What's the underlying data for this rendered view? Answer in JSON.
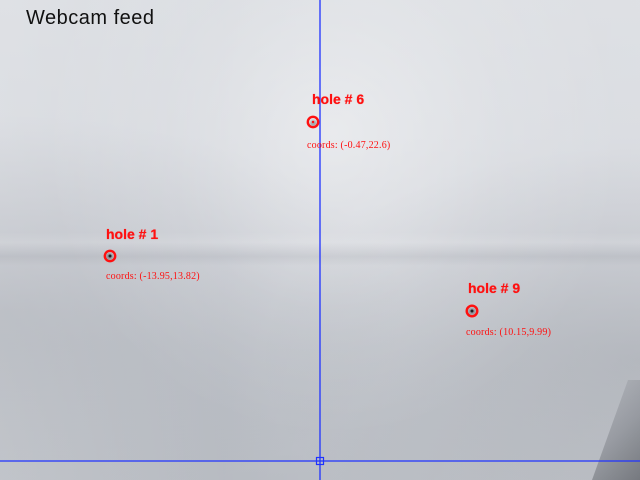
{
  "window": {
    "title": "Webcam feed"
  },
  "holes": [
    {
      "label": "hole # 6",
      "coords_text": "coords: (-0.47,22.6)",
      "x": -0.47,
      "y": 22.6
    },
    {
      "label": "hole # 1",
      "coords_text": "coords: (-13.95,13.82)",
      "x": -13.95,
      "y": 13.82
    },
    {
      "label": "hole # 9",
      "coords_text": "coords: (10.15,9.99)",
      "x": 10.15,
      "y": 9.99
    }
  ],
  "colors": {
    "annotation": "#ff1010",
    "axes": "#1f32ff",
    "title": "#111111"
  }
}
